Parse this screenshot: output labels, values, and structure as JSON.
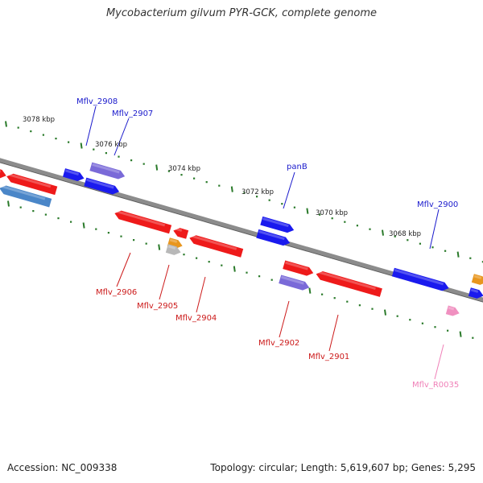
{
  "title": "Mycobacterium gilvum PYR-GCK, complete genome",
  "footer": {
    "accession": "Accession: NC_009338",
    "summary": "Topology: circular; Length: 5,619,607 bp; Genes: 5,295"
  },
  "colors": {
    "backbone": "#8a8a8a",
    "tick": "#2a7a2a",
    "cds_forward": "#1a1aee",
    "cds_reverse": "#ee1a1a",
    "rRNA": "#e8961e",
    "tRNA_like": "#b8b8b8",
    "purple_gene": "#7a6ad8",
    "light_blue": "#4a86c8",
    "ncRNA": "#f090c0",
    "label_forward": "#1a1acc",
    "label_reverse": "#cc1a1a",
    "label_ncrna": "#f080b8"
  },
  "scale_labels": [
    "3078 kbp",
    "3076 kbp",
    "3074 kbp",
    "3072 kbp",
    "3070 kbp",
    "3068 kbp"
  ],
  "gene_labels": {
    "forward": [
      "Mflv_2908",
      "Mflv_2907",
      "panB",
      "Mflv_2900"
    ],
    "reverse": [
      "Mflv_2906",
      "Mflv_2905",
      "Mflv_2904",
      "Mflv_2902",
      "Mflv_2901"
    ],
    "ncrna": [
      "Mflv_R0035"
    ]
  }
}
